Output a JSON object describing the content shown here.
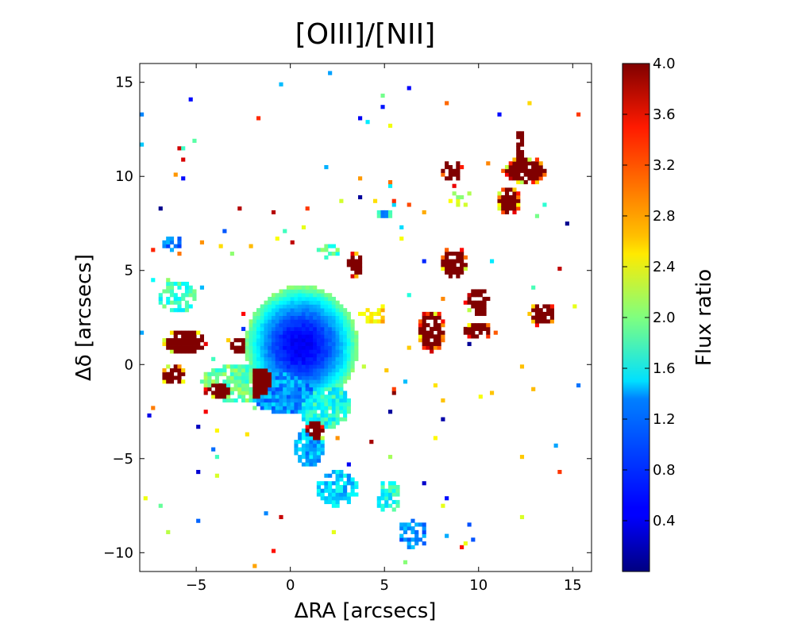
{
  "chart_data": {
    "type": "heatmap",
    "title": "[OIII]/[NII]",
    "xlabel": "ΔRA [arcsecs]",
    "ylabel": "Δδ [arcsecs]",
    "xlim": [
      -8,
      16
    ],
    "ylim": [
      -11,
      16
    ],
    "x_ticks": [
      -5,
      0,
      5,
      10,
      15
    ],
    "x_tick_labels": [
      "−5",
      "0",
      "5",
      "10",
      "15"
    ],
    "y_ticks": [
      -10,
      -5,
      0,
      5,
      10,
      15
    ],
    "y_tick_labels": [
      "−10",
      "−5",
      "0",
      "5",
      "10",
      "15"
    ],
    "colormap": "jet",
    "colorbar": {
      "label": "Flux ratio",
      "vmin": 0,
      "vmax": 4.0,
      "ticks": [
        0.4,
        0.8,
        1.2,
        1.6,
        2.0,
        2.4,
        2.8,
        3.2,
        3.6,
        4.0
      ],
      "tick_labels": [
        "0.4",
        "0.8",
        "1.2",
        "1.6",
        "2.0",
        "2.4",
        "2.8",
        "3.2",
        "3.6",
        "4.0"
      ]
    },
    "regions": [
      {
        "x": 0.6,
        "y": 1.0,
        "rx": 3.0,
        "ry": 3.2,
        "value": 0.45,
        "density": 1.0
      },
      {
        "x": -0.3,
        "y": -1.2,
        "rx": 2.0,
        "ry": 1.4,
        "value": 1.1,
        "density": 1.0
      },
      {
        "x": 1.8,
        "y": -2.2,
        "rx": 1.4,
        "ry": 1.2,
        "value": 1.6,
        "density": 0.95
      },
      {
        "x": -2.6,
        "y": -1.0,
        "rx": 2.2,
        "ry": 1.0,
        "value": 1.9,
        "density": 0.9
      },
      {
        "x": -1.5,
        "y": -1.0,
        "rx": 1.3,
        "ry": 1.0,
        "value": 4.0,
        "density": 1.0
      },
      {
        "x": -3.6,
        "y": -1.3,
        "rx": 1.0,
        "ry": 0.5,
        "value": 4.0,
        "density": 0.9
      },
      {
        "x": -5.6,
        "y": 1.2,
        "rx": 1.2,
        "ry": 0.7,
        "value": 4.0,
        "density": 0.85
      },
      {
        "x": -6.2,
        "y": -0.6,
        "rx": 0.6,
        "ry": 0.7,
        "value": 4.0,
        "density": 0.8
      },
      {
        "x": -2.8,
        "y": 1.0,
        "rx": 0.5,
        "ry": 0.5,
        "value": 4.0,
        "density": 0.7
      },
      {
        "x": -6.0,
        "y": 3.6,
        "rx": 1.0,
        "ry": 0.9,
        "value": 1.7,
        "density": 0.6
      },
      {
        "x": -6.3,
        "y": 6.5,
        "rx": 0.5,
        "ry": 0.4,
        "value": 1.0,
        "density": 0.7
      },
      {
        "x": 1.0,
        "y": -4.4,
        "rx": 0.8,
        "ry": 1.0,
        "value": 1.2,
        "density": 0.75
      },
      {
        "x": 1.3,
        "y": -3.6,
        "rx": 0.5,
        "ry": 0.8,
        "value": 4.0,
        "density": 0.8
      },
      {
        "x": 2.5,
        "y": -6.6,
        "rx": 1.1,
        "ry": 1.0,
        "value": 1.3,
        "density": 0.75
      },
      {
        "x": 4.4,
        "y": 2.7,
        "rx": 0.7,
        "ry": 0.6,
        "value": 2.6,
        "density": 0.5
      },
      {
        "x": 3.4,
        "y": 5.3,
        "rx": 0.5,
        "ry": 0.7,
        "value": 4.0,
        "density": 0.75
      },
      {
        "x": 2.0,
        "y": 6.0,
        "rx": 0.6,
        "ry": 0.5,
        "value": 1.8,
        "density": 0.5
      },
      {
        "x": 7.5,
        "y": 1.8,
        "rx": 0.7,
        "ry": 1.1,
        "value": 4.0,
        "density": 0.9
      },
      {
        "x": 8.7,
        "y": 5.4,
        "rx": 0.7,
        "ry": 0.9,
        "value": 4.0,
        "density": 0.85
      },
      {
        "x": 10.0,
        "y": 3.3,
        "rx": 0.7,
        "ry": 0.8,
        "value": 4.0,
        "density": 0.8
      },
      {
        "x": 10.0,
        "y": 1.8,
        "rx": 0.9,
        "ry": 0.4,
        "value": 4.0,
        "density": 0.8
      },
      {
        "x": 11.6,
        "y": 8.7,
        "rx": 0.6,
        "ry": 0.8,
        "value": 4.0,
        "density": 0.9
      },
      {
        "x": 12.5,
        "y": 10.3,
        "rx": 1.2,
        "ry": 0.7,
        "value": 4.0,
        "density": 0.85
      },
      {
        "x": 12.2,
        "y": 11.6,
        "rx": 0.3,
        "ry": 0.9,
        "value": 4.0,
        "density": 0.8
      },
      {
        "x": 13.4,
        "y": 2.7,
        "rx": 0.7,
        "ry": 0.6,
        "value": 4.0,
        "density": 0.85
      },
      {
        "x": 8.6,
        "y": 10.3,
        "rx": 0.6,
        "ry": 0.6,
        "value": 4.0,
        "density": 0.6
      },
      {
        "x": 9.2,
        "y": 8.8,
        "rx": 0.8,
        "ry": 0.5,
        "value": 2.2,
        "density": 0.5
      },
      {
        "x": 5.0,
        "y": 8.0,
        "rx": 0.4,
        "ry": 0.3,
        "value": 0.7,
        "density": 0.8
      },
      {
        "x": 6.5,
        "y": -9.0,
        "rx": 0.8,
        "ry": 0.8,
        "value": 1.0,
        "density": 0.6
      },
      {
        "x": 5.2,
        "y": -7.0,
        "rx": 0.7,
        "ry": 0.8,
        "value": 1.6,
        "density": 0.6
      }
    ]
  }
}
